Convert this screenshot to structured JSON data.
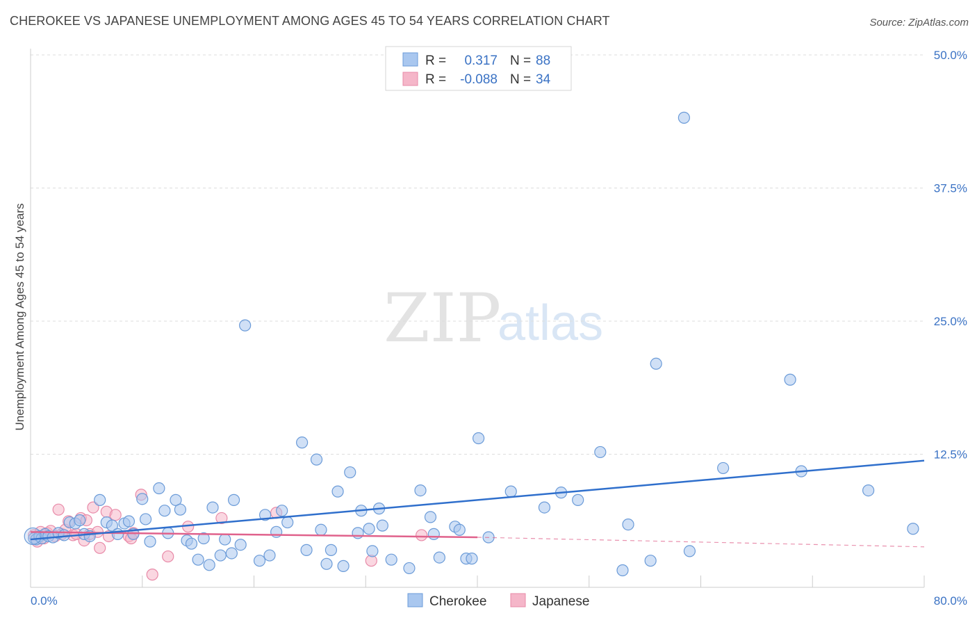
{
  "header": {
    "title": "CHEROKEE VS JAPANESE UNEMPLOYMENT AMONG AGES 45 TO 54 YEARS CORRELATION CHART",
    "source": "Source: ZipAtlas.com"
  },
  "watermark": {
    "zip": "ZIP",
    "atlas": "atlas"
  },
  "colors": {
    "cherokee_fill": "#a9c7ef",
    "cherokee_stroke": "#6b9bd8",
    "cherokee_line": "#2f6fcc",
    "japanese_fill": "#f5b6c9",
    "japanese_stroke": "#e88aa8",
    "japanese_line": "#e0628c",
    "axis_label": "#3a72c4",
    "grid": "#dddddd"
  },
  "legend": {
    "rows": [
      {
        "r_label": "R =",
        "r_value": "0.317",
        "n_label": "N =",
        "n_value": "88"
      },
      {
        "r_label": "R =",
        "r_value": "-0.088",
        "n_label": "N =",
        "n_value": "34"
      }
    ]
  },
  "chart_data": {
    "type": "scatter",
    "title": "CHEROKEE VS JAPANESE UNEMPLOYMENT AMONG AGES 45 TO 54 YEARS CORRELATION CHART",
    "xlabel": "",
    "ylabel": "Unemployment Among Ages 45 to 54 years",
    "xlim": [
      0,
      80
    ],
    "ylim": [
      0,
      50
    ],
    "x_tick_labels": [
      "0.0%",
      "80.0%"
    ],
    "y_ticks": [
      12.5,
      25.0,
      37.5,
      50.0
    ],
    "y_tick_labels": [
      "12.5%",
      "25.0%",
      "37.5%",
      "50.0%"
    ],
    "grid": "horizontal-dashed",
    "legend_position": "top-center",
    "series": [
      {
        "name": "Cherokee",
        "r": 0.317,
        "n": 88,
        "trend": {
          "x": [
            0,
            80
          ],
          "y": [
            4.5,
            11.9
          ]
        },
        "points": [
          [
            0.3,
            4.6
          ],
          [
            0.5,
            4.5
          ],
          [
            0.8,
            4.8
          ],
          [
            1.0,
            4.6
          ],
          [
            1.3,
            5.0
          ],
          [
            1.6,
            4.8
          ],
          [
            2.0,
            4.7
          ],
          [
            2.5,
            5.1
          ],
          [
            3.0,
            4.9
          ],
          [
            3.5,
            6.1
          ],
          [
            4.0,
            6.0
          ],
          [
            4.4,
            6.3
          ],
          [
            4.8,
            5.0
          ],
          [
            5.3,
            4.8
          ],
          [
            6.2,
            8.2
          ],
          [
            6.8,
            6.1
          ],
          [
            7.3,
            5.8
          ],
          [
            7.8,
            5.0
          ],
          [
            8.4,
            6.0
          ],
          [
            8.8,
            6.2
          ],
          [
            9.2,
            5.0
          ],
          [
            10.0,
            8.3
          ],
          [
            10.3,
            6.4
          ],
          [
            10.7,
            4.3
          ],
          [
            11.5,
            9.3
          ],
          [
            12.0,
            7.2
          ],
          [
            12.3,
            5.1
          ],
          [
            13.0,
            8.2
          ],
          [
            13.4,
            7.3
          ],
          [
            14.0,
            4.4
          ],
          [
            14.4,
            4.1
          ],
          [
            15.0,
            2.6
          ],
          [
            15.5,
            4.6
          ],
          [
            16.0,
            2.1
          ],
          [
            16.3,
            7.5
          ],
          [
            17.0,
            3.0
          ],
          [
            17.4,
            4.5
          ],
          [
            18.0,
            3.2
          ],
          [
            18.2,
            8.2
          ],
          [
            18.8,
            4.0
          ],
          [
            19.2,
            24.6
          ],
          [
            20.5,
            2.5
          ],
          [
            21.0,
            6.8
          ],
          [
            21.4,
            3.0
          ],
          [
            22.0,
            5.2
          ],
          [
            22.5,
            7.2
          ],
          [
            23.0,
            6.1
          ],
          [
            24.3,
            13.6
          ],
          [
            24.7,
            3.5
          ],
          [
            25.6,
            12.0
          ],
          [
            26.0,
            5.4
          ],
          [
            26.5,
            2.2
          ],
          [
            26.9,
            3.5
          ],
          [
            27.5,
            9.0
          ],
          [
            28.0,
            2.0
          ],
          [
            28.6,
            10.8
          ],
          [
            29.3,
            5.1
          ],
          [
            29.6,
            7.2
          ],
          [
            30.3,
            5.5
          ],
          [
            30.6,
            3.4
          ],
          [
            31.2,
            7.4
          ],
          [
            31.5,
            5.8
          ],
          [
            32.3,
            2.6
          ],
          [
            33.9,
            1.8
          ],
          [
            34.9,
            9.1
          ],
          [
            35.8,
            6.6
          ],
          [
            36.1,
            5.0
          ],
          [
            36.6,
            2.8
          ],
          [
            38.0,
            5.7
          ],
          [
            38.4,
            5.4
          ],
          [
            39.0,
            2.7
          ],
          [
            39.5,
            2.7
          ],
          [
            40.1,
            14.0
          ],
          [
            41.0,
            4.7
          ],
          [
            43.0,
            9.0
          ],
          [
            46.0,
            7.5
          ],
          [
            47.5,
            8.9
          ],
          [
            49.0,
            8.2
          ],
          [
            51.0,
            12.7
          ],
          [
            53.0,
            1.6
          ],
          [
            53.5,
            5.9
          ],
          [
            55.5,
            2.5
          ],
          [
            56.0,
            21.0
          ],
          [
            58.5,
            44.1
          ],
          [
            59.0,
            3.4
          ],
          [
            62.0,
            11.2
          ],
          [
            68.0,
            19.5
          ],
          [
            69.0,
            10.9
          ],
          [
            75.0,
            9.1
          ],
          [
            79.0,
            5.5
          ]
        ]
      },
      {
        "name": "Japanese",
        "r": -0.088,
        "n": 34,
        "trend": {
          "x": [
            0,
            40
          ],
          "y": [
            5.2,
            4.7
          ],
          "dashed_extension": {
            "x": [
              40,
              80
            ],
            "y": [
              4.7,
              3.8
            ]
          }
        },
        "points": [
          [
            0.3,
            4.9
          ],
          [
            0.6,
            4.3
          ],
          [
            0.9,
            5.2
          ],
          [
            1.2,
            4.6
          ],
          [
            1.5,
            5.1
          ],
          [
            1.8,
            5.3
          ],
          [
            2.2,
            4.8
          ],
          [
            2.5,
            7.3
          ],
          [
            2.8,
            5.0
          ],
          [
            3.1,
            5.4
          ],
          [
            3.4,
            6.2
          ],
          [
            3.8,
            4.9
          ],
          [
            4.1,
            5.0
          ],
          [
            4.5,
            6.5
          ],
          [
            4.8,
            4.4
          ],
          [
            5.0,
            6.3
          ],
          [
            5.3,
            5.0
          ],
          [
            5.6,
            7.5
          ],
          [
            6.0,
            5.2
          ],
          [
            6.2,
            3.7
          ],
          [
            6.8,
            7.1
          ],
          [
            7.0,
            4.8
          ],
          [
            7.6,
            6.8
          ],
          [
            8.8,
            4.8
          ],
          [
            9.2,
            5.1
          ],
          [
            9.9,
            8.7
          ],
          [
            10.9,
            1.2
          ],
          [
            12.3,
            2.9
          ],
          [
            14.1,
            5.7
          ],
          [
            17.1,
            6.5
          ],
          [
            22.0,
            7.0
          ],
          [
            30.5,
            2.5
          ],
          [
            35.0,
            4.9
          ],
          [
            9.0,
            4.6
          ]
        ]
      }
    ]
  },
  "bottom_legend": {
    "items": [
      {
        "label": "Cherokee"
      },
      {
        "label": "Japanese"
      }
    ]
  }
}
